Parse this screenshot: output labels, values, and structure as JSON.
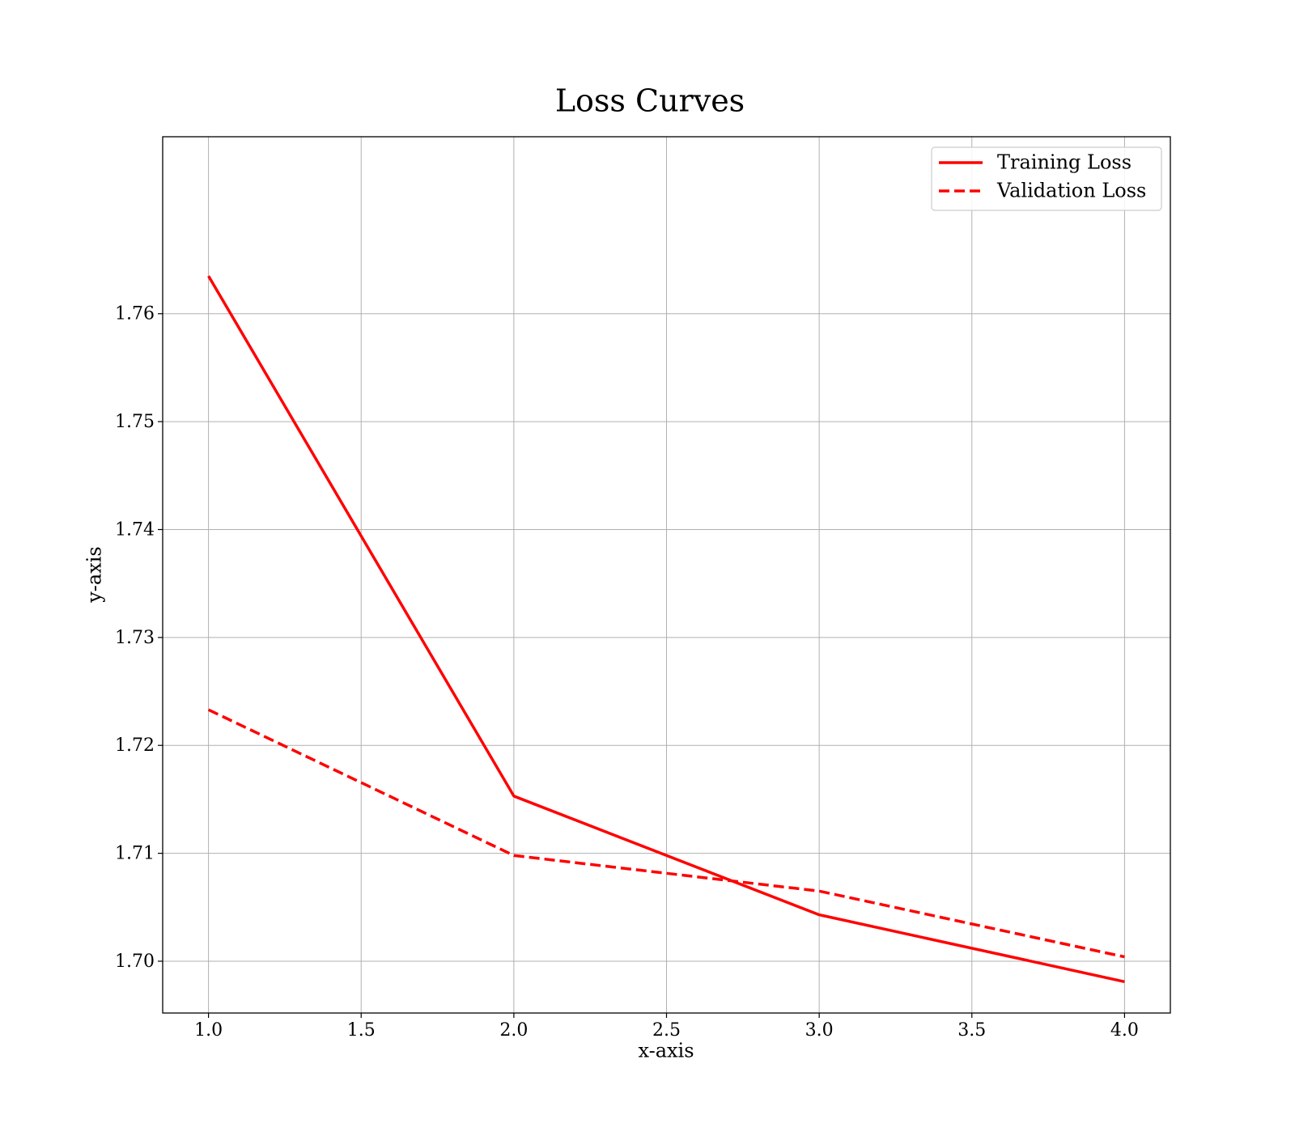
{
  "chart_data": {
    "type": "line",
    "title": "Loss Curves",
    "xlabel": "x-axis",
    "ylabel": "y-axis",
    "xlim": [
      0.85,
      4.15
    ],
    "ylim": [
      1.6952,
      1.7764
    ],
    "x_ticks": [
      1.0,
      1.5,
      2.0,
      2.5,
      3.0,
      3.5,
      4.0
    ],
    "x_tick_labels": [
      "1.0",
      "1.5",
      "2.0",
      "2.5",
      "3.0",
      "3.5",
      "4.0"
    ],
    "y_ticks": [
      1.7,
      1.71,
      1.72,
      1.73,
      1.74,
      1.75,
      1.76
    ],
    "y_tick_labels": [
      "1.70",
      "1.71",
      "1.72",
      "1.73",
      "1.74",
      "1.75",
      "1.76"
    ],
    "grid": true,
    "legend_position": "top-right",
    "x": [
      1,
      2,
      3,
      4
    ],
    "series": [
      {
        "name": "Training Loss",
        "values": [
          1.7635,
          1.7153,
          1.7043,
          1.6981
        ],
        "color": "#ff0000",
        "style": "solid"
      },
      {
        "name": "Validation Loss",
        "values": [
          1.7233,
          1.7098,
          1.7065,
          1.7004
        ],
        "color": "#ff0000",
        "style": "dashed"
      }
    ]
  }
}
